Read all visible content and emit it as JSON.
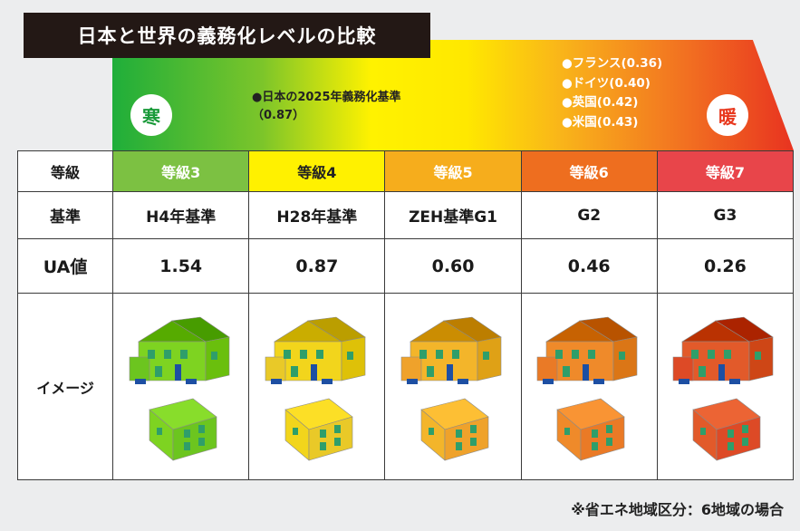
{
  "title": "日本と世界の義務化レベルの比較",
  "badges": {
    "cold": "寒",
    "warm": "暖"
  },
  "notes": {
    "japan_line1": "●日本の2025年義務化基準",
    "japan_line2": "（0.87）",
    "intl": [
      "●フランス(0.36)",
      "●ドイツ(0.40)",
      "●英国(0.42)",
      "●米国(0.43)"
    ]
  },
  "table": {
    "row_headers": {
      "grade": "等級",
      "standard": "基準",
      "ua": "UA値",
      "image": "イメージ"
    },
    "columns": [
      {
        "grade": "等級3",
        "standard": "H4年基準",
        "ua": "1.54",
        "color": "#7cc142",
        "house": "#7ed321",
        "house2": "#6cc51f"
      },
      {
        "grade": "等級4",
        "standard": "H28年基準",
        "ua": "0.87",
        "color": "#fff100",
        "house": "#f2d51c",
        "house2": "#e9c928"
      },
      {
        "grade": "等級5",
        "standard": "ZEH基準G1",
        "ua": "0.60",
        "color": "#f6ad1c",
        "house": "#f3b52a",
        "house2": "#efa22b"
      },
      {
        "grade": "等級6",
        "standard": "G2",
        "ua": "0.46",
        "color": "#ee6e1f",
        "house": "#ef8a2a",
        "house2": "#ea7a26"
      },
      {
        "grade": "等級7",
        "standard": "G3",
        "ua": "0.26",
        "color": "#e8454a",
        "house": "#e25a2a",
        "house2": "#dd4a26"
      }
    ]
  },
  "footnote": "※省エネ地域区分：6地域の場合"
}
